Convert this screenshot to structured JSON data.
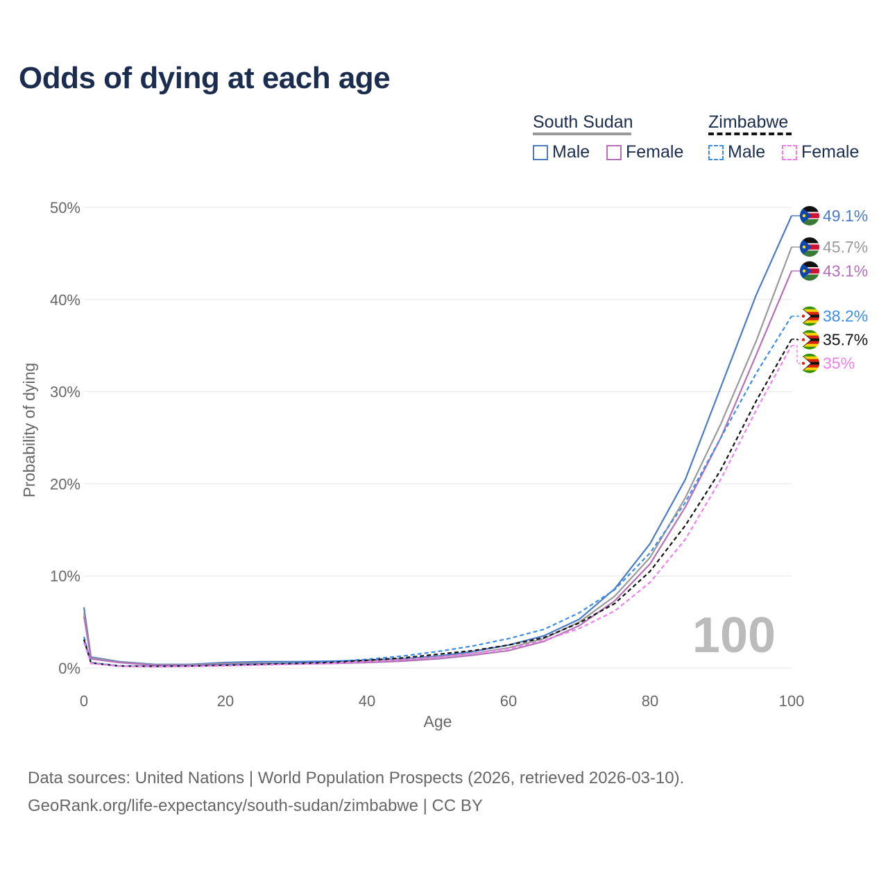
{
  "title": "Odds of dying at each age",
  "legend": {
    "countries": [
      {
        "name": "South Sudan",
        "line_style": "solid",
        "line_color": "#999999",
        "items": [
          {
            "label": "Male",
            "color": "#4b7bc4",
            "style": "solid"
          },
          {
            "label": "Female",
            "color": "#b36fb8",
            "style": "solid"
          }
        ]
      },
      {
        "name": "Zimbabwe",
        "line_style": "dashed",
        "line_color": "#111111",
        "items": [
          {
            "label": "Male",
            "color": "#3d8ce6",
            "style": "dashed"
          },
          {
            "label": "Female",
            "color": "#f07ef0",
            "style": "dashed"
          }
        ]
      }
    ]
  },
  "watermark_year": "100",
  "footer": {
    "line1": "Data sources: United Nations | World Population Prospects (2026, retrieved 2026-03-10).",
    "line2": "GeoRank.org/life-expectancy/south-sudan/zimbabwe | CC BY"
  },
  "chart_data": {
    "type": "line",
    "title": "Odds of dying at each age",
    "xlabel": "Age",
    "ylabel": "Probability of dying",
    "xlim": [
      0,
      100
    ],
    "ylim": [
      0,
      50
    ],
    "x_ticks": [
      0,
      20,
      40,
      60,
      80,
      100
    ],
    "y_ticks": [
      0,
      10,
      20,
      30,
      40,
      50
    ],
    "y_tick_labels": [
      "0%",
      "10%",
      "20%",
      "30%",
      "40%",
      "50%"
    ],
    "grid": true,
    "x": [
      0,
      1,
      5,
      10,
      15,
      20,
      25,
      30,
      35,
      40,
      45,
      50,
      55,
      60,
      65,
      70,
      75,
      80,
      85,
      90,
      95,
      100
    ],
    "series": [
      {
        "name": "South Sudan Male",
        "color": "#4b7bc4",
        "dash": "solid",
        "flag": "south-sudan",
        "end_label": "49.1%",
        "values": [
          6.6,
          1.2,
          0.7,
          0.4,
          0.4,
          0.6,
          0.7,
          0.7,
          0.75,
          0.85,
          1.0,
          1.3,
          1.8,
          2.5,
          3.5,
          5.3,
          8.6,
          13.5,
          20.5,
          30.5,
          40.5,
          49.1
        ]
      },
      {
        "name": "South Sudan (both)",
        "color": "#999999",
        "dash": "solid",
        "flag": "south-sudan",
        "end_label": "45.7%",
        "values": [
          6.0,
          1.1,
          0.65,
          0.35,
          0.35,
          0.5,
          0.55,
          0.55,
          0.6,
          0.75,
          0.9,
          1.2,
          1.6,
          2.2,
          3.2,
          5.0,
          7.8,
          12.0,
          18.5,
          26.5,
          35.5,
          45.7
        ]
      },
      {
        "name": "South Sudan Female",
        "color": "#b36fb8",
        "dash": "solid",
        "flag": "south-sudan",
        "end_label": "43.1%",
        "values": [
          5.6,
          1.0,
          0.6,
          0.3,
          0.3,
          0.4,
          0.45,
          0.45,
          0.5,
          0.6,
          0.75,
          1.0,
          1.4,
          1.9,
          2.9,
          4.6,
          7.3,
          11.3,
          17.5,
          25.0,
          34.0,
          43.1
        ]
      },
      {
        "name": "Zimbabwe Male",
        "color": "#3d8ce6",
        "dash": "dashed",
        "flag": "zimbabwe",
        "end_label": "38.2%",
        "values": [
          3.4,
          0.6,
          0.25,
          0.2,
          0.25,
          0.35,
          0.45,
          0.55,
          0.7,
          0.95,
          1.3,
          1.8,
          2.4,
          3.2,
          4.2,
          6.0,
          8.5,
          12.5,
          18.0,
          25.0,
          32.0,
          38.2
        ]
      },
      {
        "name": "Zimbabwe (both)",
        "color": "#111111",
        "dash": "dashed",
        "flag": "zimbabwe",
        "end_label": "35.7%",
        "values": [
          3.1,
          0.55,
          0.22,
          0.18,
          0.22,
          0.3,
          0.4,
          0.5,
          0.62,
          0.85,
          1.1,
          1.5,
          1.9,
          2.5,
          3.3,
          4.9,
          7.0,
          10.5,
          15.5,
          21.5,
          29.0,
          35.7
        ]
      },
      {
        "name": "Zimbabwe Female",
        "color": "#f07ef0",
        "dash": "dashed",
        "flag": "zimbabwe",
        "end_label": "35%",
        "values": [
          2.8,
          0.5,
          0.2,
          0.15,
          0.18,
          0.25,
          0.33,
          0.42,
          0.52,
          0.7,
          0.9,
          1.2,
          1.6,
          2.1,
          3.0,
          4.3,
          6.2,
          9.3,
          14.0,
          20.5,
          28.0,
          35.0
        ]
      }
    ]
  }
}
